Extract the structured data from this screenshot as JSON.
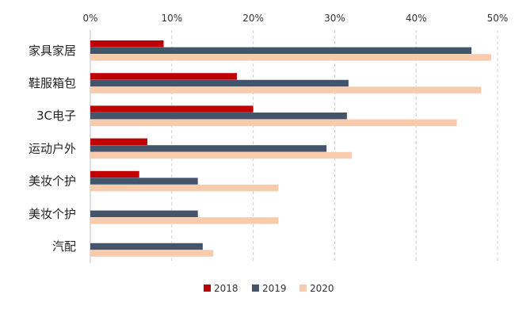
{
  "chart_data": {
    "type": "bar",
    "orientation": "horizontal",
    "categories": [
      "家具家居",
      "鞋服箱包",
      "3C电子",
      "运动户外",
      "美妆个护",
      "美妆个护",
      "汽配"
    ],
    "series": [
      {
        "name": "2018",
        "color": "#c00000",
        "values": [
          9,
          18,
          20,
          7,
          6,
          0,
          0
        ]
      },
      {
        "name": "2019",
        "color": "#44546a",
        "values": [
          46.8,
          31.7,
          31.5,
          29,
          13.2,
          13.2,
          13.8
        ]
      },
      {
        "name": "2020",
        "color": "#f8cbad",
        "values": [
          49.2,
          48,
          45,
          32.1,
          23.1,
          23.1,
          15.1
        ]
      }
    ],
    "xlim": [
      0,
      50
    ],
    "x_ticks": [
      "0%",
      "10%",
      "20%",
      "30%",
      "40%",
      "50%"
    ],
    "x_axis_position": "top",
    "grid": "vertical dashed",
    "legend_position": "bottom"
  }
}
